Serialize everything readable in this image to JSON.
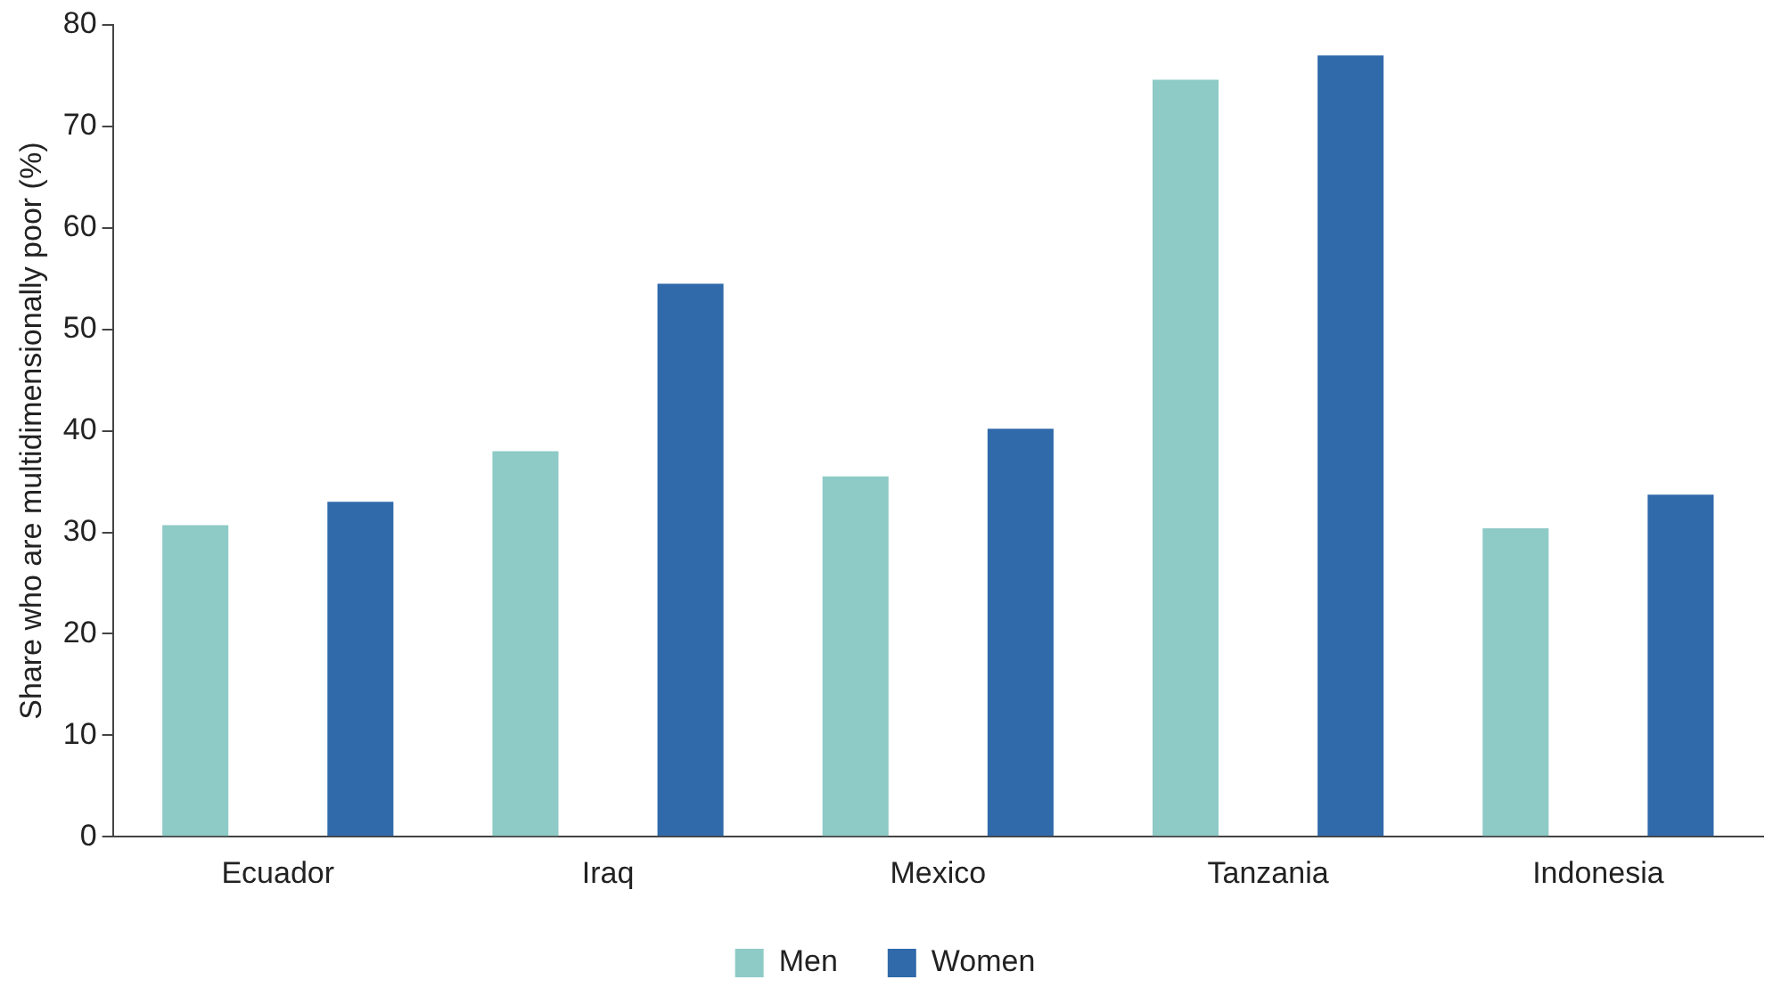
{
  "chart_data": {
    "type": "bar",
    "ylabel": "Share who are multidimensionally poor (%)",
    "categories": [
      "Ecuador",
      "Iraq",
      "Mexico",
      "Tanzania",
      "Indonesia"
    ],
    "series": [
      {
        "name": "Men",
        "color": "#8ecac6",
        "values": [
          30.7,
          38,
          35.5,
          74.6,
          30.4
        ]
      },
      {
        "name": "Women",
        "color": "#306aaa",
        "values": [
          33,
          54.5,
          40.2,
          77,
          33.7
        ]
      }
    ],
    "ylim": [
      0,
      80
    ],
    "yticks": [
      0,
      10,
      20,
      30,
      40,
      50,
      60,
      70,
      80
    ],
    "grid": false,
    "legend": "bottom"
  }
}
